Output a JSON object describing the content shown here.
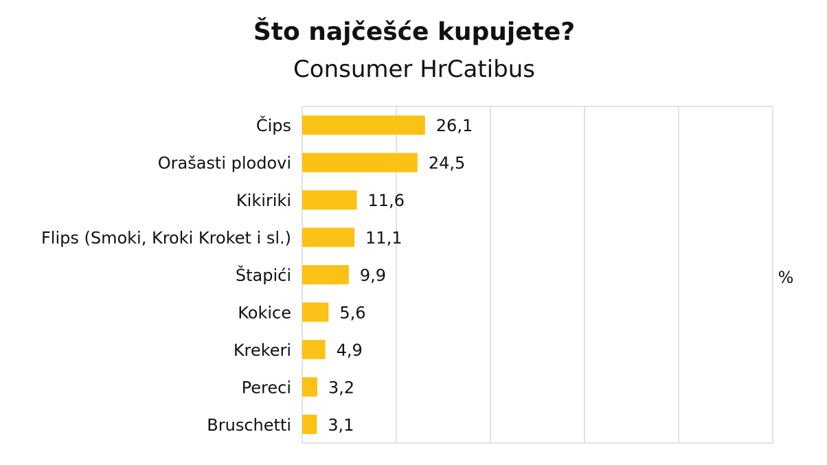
{
  "chart_data": {
    "type": "bar",
    "orientation": "horizontal",
    "title": "Što najčešće kupujete?",
    "subtitle": "Consumer HrCatibus",
    "categories": [
      "Čips",
      "Orašasti plodovi",
      "Kikiriki",
      "Flips (Smoki, Kroki Kroket i sl.)",
      "Štapići",
      "Kokice",
      "Krekeri",
      "Pereci",
      "Bruschetti"
    ],
    "values": [
      26.1,
      24.5,
      11.6,
      11.1,
      9.9,
      5.6,
      4.9,
      3.2,
      3.1
    ],
    "value_labels": [
      "26,1",
      "24,5",
      "11,6",
      "11,1",
      "9,9",
      "5,6",
      "4,9",
      "3,2",
      "3,1"
    ],
    "unit": "%",
    "xlim": [
      0,
      100
    ],
    "grid": true,
    "legend": "none",
    "colors": {
      "bar": "#FBC115",
      "grid": "#D9D9D9",
      "text": "#111111"
    }
  }
}
